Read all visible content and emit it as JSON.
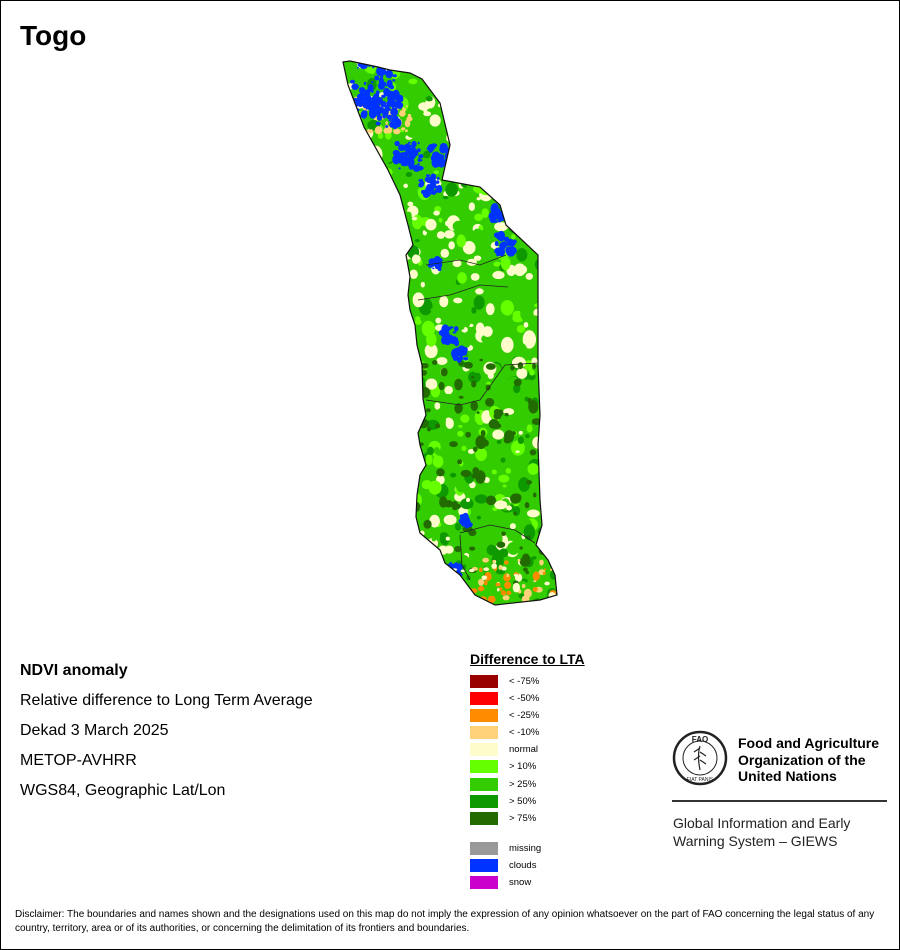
{
  "map_title": "Togo",
  "info": {
    "product": "NDVI anomaly",
    "description": "Relative difference to Long Term Average",
    "period": "Dekad 3 March 2025",
    "sensor": "METOP-AVHRR",
    "projection": "WGS84, Geographic Lat/Lon"
  },
  "legend": {
    "title": "Difference to LTA",
    "classes": [
      {
        "label": "< -75%",
        "color": "#990000"
      },
      {
        "label": "< -50%",
        "color": "#ff0000"
      },
      {
        "label": "< -25%",
        "color": "#ff8c00"
      },
      {
        "label": "< -10%",
        "color": "#ffd27a"
      },
      {
        "label": "normal",
        "color": "#fffccc"
      },
      {
        "label": "> 10%",
        "color": "#66ff00"
      },
      {
        "label": "> 25%",
        "color": "#33cc00"
      },
      {
        "label": "> 50%",
        "color": "#0f9900"
      },
      {
        "label": "> 75%",
        "color": "#226b00"
      }
    ],
    "special": [
      {
        "label": "missing",
        "color": "#999999"
      },
      {
        "label": "clouds",
        "color": "#0033ff"
      },
      {
        "label": "snow",
        "color": "#cc00cc"
      }
    ]
  },
  "logo": {
    "letters": "FAO",
    "motto": "FIAT PANIS"
  },
  "organization": {
    "name_line1": "Food and Agriculture",
    "name_line2": "Organization of the",
    "name_line3": "United Nations",
    "system_line1": "Global Information and Early",
    "system_line2": "Warning System – GIEWS"
  },
  "disclaimer": "Disclaimer: The boundaries and names shown and the designations used on this map do not imply the expression of any opinion whatsoever on the part of FAO concerning the legal status of any country, territory, area or of its authorities, or concerning the delimitation of its frontiers and boundaries."
}
